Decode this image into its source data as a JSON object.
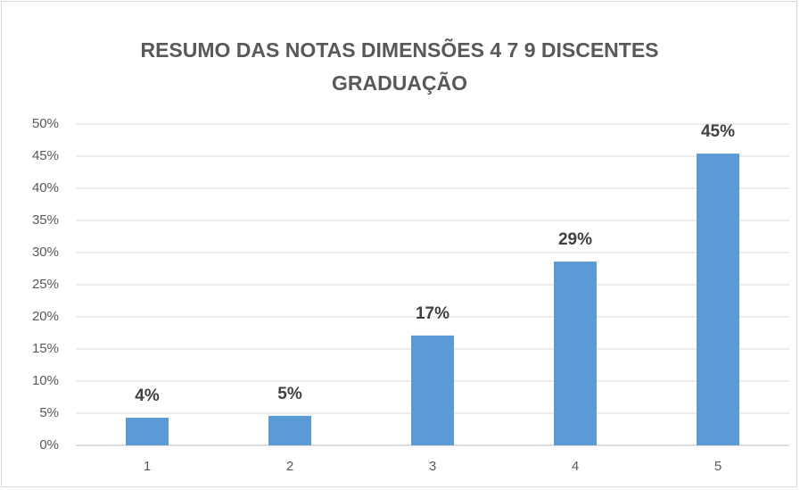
{
  "chart_data": {
    "type": "bar",
    "title": "RESUMO DAS NOTAS DIMENSÕES 4 7 9 DISCENTES GRADUAÇÃO",
    "categories": [
      "1",
      "2",
      "3",
      "4",
      "5"
    ],
    "values": [
      4.3,
      4.6,
      17.1,
      28.6,
      45.4
    ],
    "value_labels": [
      "4%",
      "5%",
      "17%",
      "29%",
      "45%"
    ],
    "color": "#5b9bd5",
    "ylim": [
      0,
      50
    ],
    "yticks": [
      {
        "value": 0,
        "label": "0%"
      },
      {
        "value": 5,
        "label": "5%"
      },
      {
        "value": 10,
        "label": "10%"
      },
      {
        "value": 15,
        "label": "15%"
      },
      {
        "value": 20,
        "label": "20%"
      },
      {
        "value": 25,
        "label": "25%"
      },
      {
        "value": 30,
        "label": "30%"
      },
      {
        "value": 35,
        "label": "35%"
      },
      {
        "value": 40,
        "label": "40%"
      },
      {
        "value": 45,
        "label": "45%"
      },
      {
        "value": 50,
        "label": "50%"
      }
    ],
    "grid": true
  }
}
